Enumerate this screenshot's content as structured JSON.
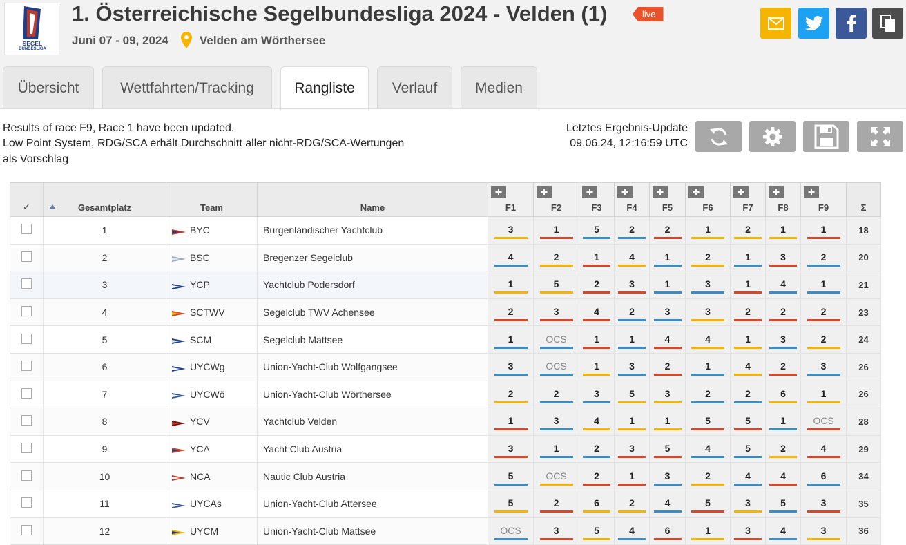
{
  "header": {
    "logo_text_1": "SEGEL",
    "logo_text_2": "BUNDESLIGA",
    "title": "1. Österreichische Segelbundesliga 2024 - Velden (1)",
    "live_badge": "live",
    "dates": "Juni 07 - 09, 2024",
    "location": "Velden am Wörthersee"
  },
  "tabs": [
    {
      "label": "Übersicht",
      "active": false
    },
    {
      "label": "Wettfahrten/Tracking",
      "active": false
    },
    {
      "label": "Rangliste",
      "active": true
    },
    {
      "label": "Verlauf",
      "active": false
    },
    {
      "label": "Medien",
      "active": false
    }
  ],
  "info": {
    "line1": "Results of race F9, Race 1 have been updated.",
    "line2": "Low Point System, RDG/SCA erhält Durchschnitt aller nicht-RDG/SCA-Wertungen",
    "line3": "als Vorschlag",
    "update_label": "Letztes Ergebnis-Update",
    "update_time": "09.06.24, 12:16:59 UTC"
  },
  "colors": {
    "yellow": "#f4b400",
    "red": "#d9472b",
    "blue": "#3a8dc3",
    "live": "#e8532c"
  },
  "table": {
    "check_header": "✓",
    "place_header": "Gesamtplatz",
    "team_header": "Team",
    "name_header": "Name",
    "race_headers": [
      "F1",
      "F2",
      "F3",
      "F4",
      "F5",
      "F6",
      "F7",
      "F8",
      "F9"
    ],
    "sum_header": "Σ",
    "rows": [
      {
        "place": "1",
        "team": "BYC",
        "name": "Burgenländischer Yachtclub",
        "scores": [
          "3",
          "1",
          "5",
          "2",
          "2",
          "1",
          "2",
          "1",
          "1"
        ],
        "colors": [
          "y",
          "r",
          "b",
          "b",
          "r",
          "y",
          "y",
          "y",
          "r"
        ],
        "total": "18"
      },
      {
        "place": "2",
        "team": "BSC",
        "name": "Bregenzer Segelclub",
        "scores": [
          "4",
          "2",
          "1",
          "4",
          "1",
          "2",
          "1",
          "3",
          "2"
        ],
        "colors": [
          "b",
          "y",
          "r",
          "y",
          "b",
          "y",
          "b",
          "r",
          "b"
        ],
        "total": "20"
      },
      {
        "place": "3",
        "team": "YCP",
        "name": "Yachtclub Podersdorf",
        "scores": [
          "1",
          "5",
          "2",
          "3",
          "1",
          "3",
          "1",
          "4",
          "1"
        ],
        "colors": [
          "y",
          "y",
          "r",
          "r",
          "b",
          "b",
          "r",
          "b",
          "b"
        ],
        "total": "21"
      },
      {
        "place": "4",
        "team": "SCTWV",
        "name": "Segelclub TWV Achensee",
        "scores": [
          "2",
          "3",
          "4",
          "2",
          "3",
          "3",
          "2",
          "2",
          "2"
        ],
        "colors": [
          "r",
          "r",
          "r",
          "b",
          "b",
          "y",
          "r",
          "r",
          "r"
        ],
        "total": "23"
      },
      {
        "place": "5",
        "team": "SCM",
        "name": "Segelclub Mattsee",
        "scores": [
          "1",
          "OCS",
          "1",
          "1",
          "4",
          "4",
          "1",
          "3",
          "2"
        ],
        "colors": [
          "b",
          "b",
          "r",
          "b",
          "r",
          "y",
          "y",
          "b",
          "y"
        ],
        "total": "24"
      },
      {
        "place": "6",
        "team": "UYCWg",
        "name": "Union-Yacht-Club Wolfgangsee",
        "scores": [
          "3",
          "OCS",
          "1",
          "3",
          "2",
          "1",
          "4",
          "2",
          "3"
        ],
        "colors": [
          "b",
          "b",
          "y",
          "b",
          "r",
          "b",
          "y",
          "r",
          "b"
        ],
        "total": "26"
      },
      {
        "place": "7",
        "team": "UYCWö",
        "name": "Union-Yacht-Club Wörthersee",
        "scores": [
          "2",
          "2",
          "3",
          "5",
          "3",
          "2",
          "2",
          "6",
          "1"
        ],
        "colors": [
          "y",
          "b",
          "b",
          "y",
          "y",
          "b",
          "b",
          "y",
          "y"
        ],
        "total": "26"
      },
      {
        "place": "8",
        "team": "YCV",
        "name": "Yachtclub Velden",
        "scores": [
          "1",
          "3",
          "4",
          "1",
          "1",
          "5",
          "5",
          "1",
          "OCS"
        ],
        "colors": [
          "r",
          "b",
          "y",
          "y",
          "y",
          "r",
          "r",
          "b",
          "r"
        ],
        "total": "28"
      },
      {
        "place": "9",
        "team": "YCA",
        "name": "Yacht Club Austria",
        "scores": [
          "3",
          "1",
          "2",
          "3",
          "5",
          "4",
          "5",
          "2",
          "4"
        ],
        "colors": [
          "r",
          "b",
          "b",
          "r",
          "r",
          "b",
          "b",
          "y",
          "r"
        ],
        "total": "29"
      },
      {
        "place": "10",
        "team": "NCA",
        "name": "Nautic Club Austria",
        "scores": [
          "5",
          "OCS",
          "2",
          "1",
          "3",
          "2",
          "4",
          "4",
          "6"
        ],
        "colors": [
          "b",
          "y",
          "r",
          "r",
          "b",
          "y",
          "b",
          "r",
          "b"
        ],
        "total": "34"
      },
      {
        "place": "11",
        "team": "UYCAs",
        "name": "Union-Yacht-Club Attersee",
        "scores": [
          "5",
          "2",
          "6",
          "2",
          "4",
          "5",
          "3",
          "5",
          "3"
        ],
        "colors": [
          "y",
          "r",
          "y",
          "y",
          "b",
          "r",
          "y",
          "b",
          "r"
        ],
        "total": "35"
      },
      {
        "place": "12",
        "team": "UYCM",
        "name": "Union-Yacht-Club Mattsee",
        "scores": [
          "OCS",
          "3",
          "5",
          "4",
          "6",
          "1",
          "3",
          "4",
          "3"
        ],
        "colors": [
          "b",
          "r",
          "y",
          "b",
          "r",
          "y",
          "r",
          "b",
          "y"
        ],
        "total": "36"
      }
    ]
  }
}
